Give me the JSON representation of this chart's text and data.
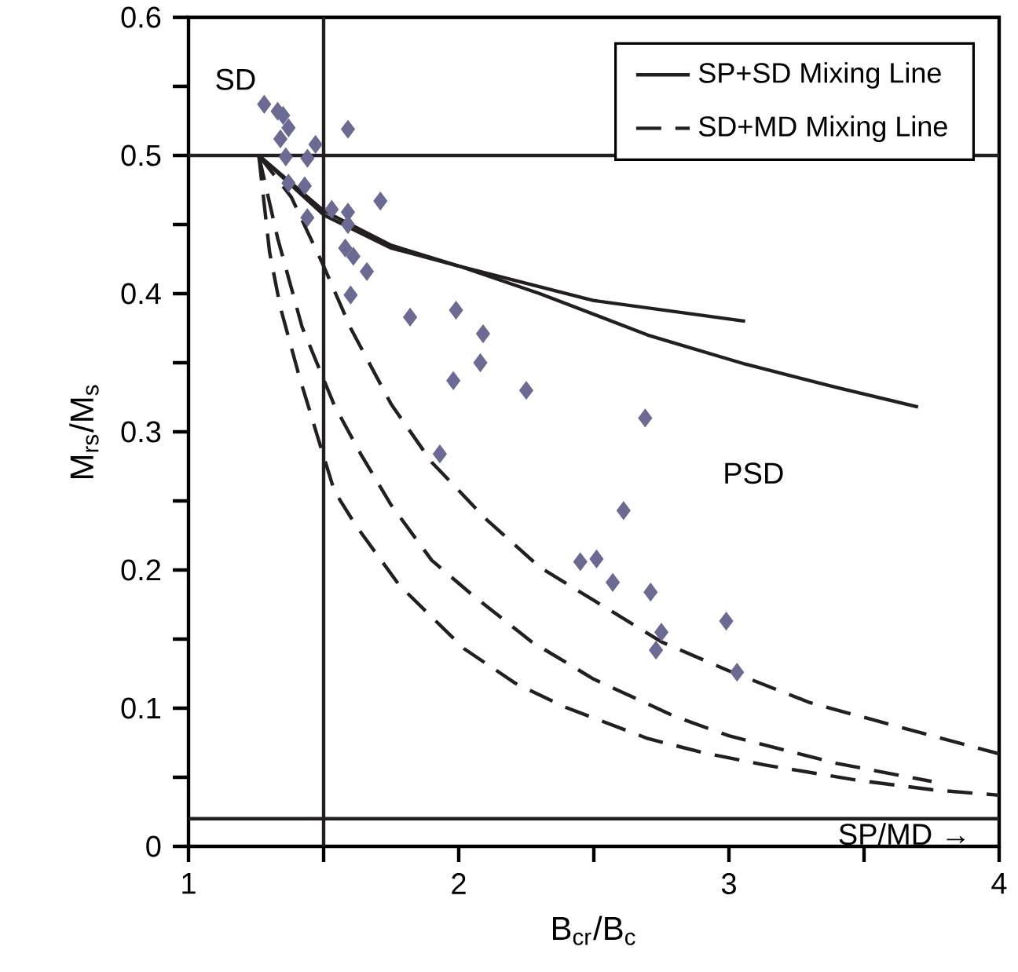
{
  "chart_data": {
    "type": "scatter",
    "xlabel": "B$_{cr}$/B$_{c}$",
    "ylabel": "M$_{rs}$/M$_{s}$",
    "xlim": [
      1,
      4
    ],
    "ylim": [
      0,
      0.6
    ],
    "xticks": [
      1,
      {
        "value": 1.5,
        "label": null
      },
      2,
      {
        "value": 2.5,
        "label": null
      },
      3,
      {
        "value": 3.5,
        "label": null
      },
      4
    ],
    "yticks": [
      0,
      {
        "value": 0.05,
        "label": null
      },
      0.1,
      {
        "value": 0.15,
        "label": null
      },
      0.2,
      {
        "value": 0.25,
        "label": null
      },
      0.3,
      {
        "value": 0.35,
        "label": null
      },
      0.4,
      {
        "value": 0.45,
        "label": null
      },
      0.5,
      {
        "value": 0.55,
        "label": null
      },
      0.6
    ],
    "grid": false,
    "legend": "top right",
    "series": [
      {
        "marker": "diamond",
        "color": "#6b6a93",
        "x": [
          1.28,
          1.33,
          1.35,
          1.37,
          1.34,
          1.59,
          1.47,
          1.36,
          1.44,
          1.37,
          1.43,
          1.44,
          1.71,
          1.53,
          1.59,
          1.59,
          1.58,
          1.61,
          1.66,
          1.6,
          1.82,
          1.99,
          2.09,
          2.08,
          1.98,
          2.25,
          2.69,
          1.93,
          2.61,
          2.45,
          2.51,
          2.57,
          2.71,
          2.75,
          2.73,
          2.99,
          3.03
        ],
        "values": [
          0.537,
          0.532,
          0.529,
          0.52,
          0.512,
          0.519,
          0.508,
          0.499,
          0.498,
          0.48,
          0.478,
          0.455,
          0.467,
          0.461,
          0.459,
          0.45,
          0.433,
          0.427,
          0.416,
          0.399,
          0.383,
          0.388,
          0.371,
          0.35,
          0.337,
          0.33,
          0.31,
          0.284,
          0.243,
          0.206,
          0.208,
          0.191,
          0.184,
          0.155,
          0.142,
          0.163,
          0.126
        ]
      },
      {
        "type": "line",
        "name": "SP+SD Mixing Line",
        "color": "#231f20",
        "line_style": "solid",
        "x": [
          1.26,
          1.5,
          1.75,
          2.0,
          2.5,
          3.06
        ],
        "values": [
          0.5,
          0.46,
          0.435,
          0.42,
          0.395,
          0.38
        ]
      },
      {
        "type": "line",
        "color": "#231f20",
        "line_style": "solid",
        "x": [
          1.26,
          1.5,
          1.75,
          2.0,
          2.3,
          2.7,
          3.06,
          3.4,
          3.7
        ],
        "values": [
          0.5,
          0.457,
          0.433,
          0.42,
          0.4,
          0.37,
          0.349,
          0.332,
          0.318
        ]
      },
      {
        "type": "line",
        "name": "SD+MD Mixing Line",
        "color": "#231f20",
        "line_style": "dashed",
        "x": [
          1.26,
          1.38,
          1.5,
          1.6,
          1.75,
          1.9,
          2.1,
          2.3,
          2.5,
          2.75,
          3.0,
          3.3,
          3.6,
          4.0
        ],
        "values": [
          0.5,
          0.47,
          0.42,
          0.375,
          0.32,
          0.278,
          0.237,
          0.202,
          0.178,
          0.148,
          0.127,
          0.104,
          0.088,
          0.067
        ]
      },
      {
        "type": "line",
        "color": "#231f20",
        "line_style": "dashed",
        "x": [
          1.26,
          1.33,
          1.42,
          1.54,
          1.64,
          1.75,
          1.9,
          2.05,
          2.27,
          2.5,
          2.8,
          3.0,
          3.4,
          3.75
        ],
        "values": [
          0.5,
          0.44,
          0.376,
          0.319,
          0.283,
          0.247,
          0.207,
          0.182,
          0.148,
          0.121,
          0.094,
          0.08,
          0.06,
          0.047
        ]
      },
      {
        "type": "line",
        "color": "#231f20",
        "line_style": "dashed",
        "x": [
          1.26,
          1.3,
          1.34,
          1.41,
          1.48,
          1.54,
          1.62,
          1.78,
          2.02,
          2.21,
          2.39,
          2.7,
          2.9,
          3.13,
          3.47,
          3.75,
          4.0
        ],
        "values": [
          0.5,
          0.43,
          0.39,
          0.34,
          0.295,
          0.257,
          0.232,
          0.189,
          0.143,
          0.118,
          0.101,
          0.078,
          0.068,
          0.059,
          0.048,
          0.041,
          0.037
        ]
      }
    ],
    "ref_lines": [
      {
        "axis": "x",
        "value": 1.5,
        "color": "#231f20"
      },
      {
        "axis": "y",
        "value": 0.5,
        "color": "#231f20"
      },
      {
        "axis": "y",
        "value": 0.02,
        "color": "#231f20"
      }
    ],
    "annotations": [
      "SD",
      "PSD",
      "SP/MD →"
    ]
  }
}
